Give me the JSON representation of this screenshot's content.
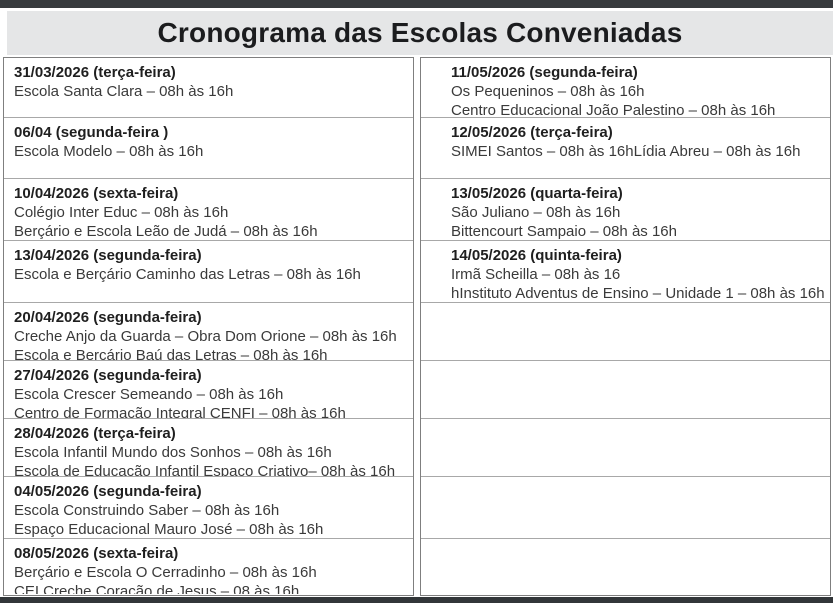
{
  "page": {
    "title": "Cronograma das Escolas Conveniadas"
  },
  "schedule": {
    "columns": [
      {
        "rows": [
          {
            "date": "31/03/2026 (terça-feira)",
            "lines": [
              "Escola Santa Clara – 08h às 16h"
            ]
          },
          {
            "date": "06/04 (segunda-feira )",
            "lines": [
              "Escola Modelo – 08h às 16h"
            ]
          },
          {
            "date": "10/04/2026 (sexta-feira)",
            "lines": [
              "Colégio Inter Educ – 08h às 16h",
              "Berçário e Escola Leão de Judá – 08h às 16h"
            ]
          },
          {
            "date": "13/04/2026 (segunda-feira)",
            "lines": [
              "Escola e Berçário Caminho das Letras – 08h às 16h"
            ]
          },
          {
            "date": "20/04/2026 (segunda-feira)",
            "lines": [
              "Creche Anjo da Guarda – Obra Dom Orione – 08h às 16h",
              "Escola e Berçário Baú das Letras – 08h às 16h"
            ]
          },
          {
            "date": "27/04/2026 (segunda-feira)",
            "lines": [
              "Escola Crescer Semeando – 08h às 16h",
              "Centro de Formação Integral CENFI – 08h às 16h"
            ]
          },
          {
            "date": "28/04/2026 (terça-feira)",
            "lines": [
              "Escola Infantil Mundo dos Sonhos – 08h às 16h",
              "Escola de Educação Infantil Espaço Criativo– 08h às 16h"
            ]
          },
          {
            "date": "04/05/2026 (segunda-feira)",
            "lines": [
              "Escola Construindo Saber – 08h às 16h",
              "Espaço Educacional Mauro José – 08h às 16h"
            ]
          },
          {
            "date": "08/05/2026 (sexta-feira)",
            "lines": [
              "Berçário e Escola O Cerradinho – 08h às 16h",
              "CEI Creche Coração de Jesus – 08 às 16h"
            ]
          }
        ]
      },
      {
        "rows": [
          {
            "date": "11/05/2026 (segunda-feira)",
            "lines": [
              "Os Pequeninos – 08h às 16h",
              "Centro Educacional João Palestino – 08h às 16h"
            ]
          },
          {
            "date": "12/05/2026 (terça-feira)",
            "lines": [
              "SIMEI Santos – 08h às 16hLídia Abreu – 08h às 16h"
            ]
          },
          {
            "date": "13/05/2026 (quarta-feira)",
            "lines": [
              "São Juliano – 08h às 16h",
              "Bittencourt Sampaio – 08h às 16h"
            ]
          },
          {
            "date": "14/05/2026 (quinta-feira)",
            "lines": [
              "Irmã Scheilla – 08h às 16",
              "hInstituto Adventus de Ensino – Unidade 1 – 08h às 16h"
            ]
          },
          {
            "date": "",
            "lines": []
          },
          {
            "date": "",
            "lines": []
          },
          {
            "date": "",
            "lines": []
          },
          {
            "date": "",
            "lines": []
          },
          {
            "date": "",
            "lines": []
          }
        ]
      }
    ]
  },
  "colors": {
    "top_bar": "#383b3e",
    "bottom_bar": "#323639",
    "title_band": "#e5e6e7",
    "title_text": "#1b1c1e",
    "date_text": "#1f1f1f",
    "body_text": "#3a3a3a",
    "border_outer": "#7f7f7f",
    "border_inner": "#a8a8a8"
  }
}
